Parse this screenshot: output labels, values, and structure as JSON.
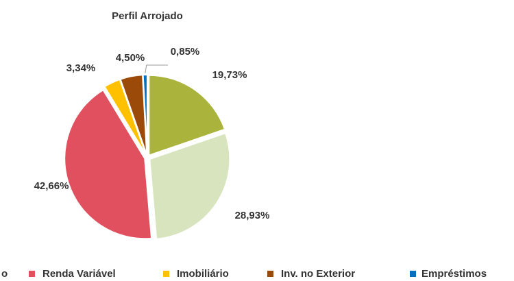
{
  "chart_data": {
    "type": "pie",
    "title": "Perfil Arrojado",
    "categories": [
      null,
      "o",
      "Renda Variável",
      "Imobiliário",
      "Inv. no Exterior",
      "Empréstimos"
    ],
    "values": [
      19.73,
      28.93,
      42.66,
      3.34,
      4.5,
      0.85
    ],
    "value_labels": [
      "19,73%",
      "28,93%",
      "42,66%",
      "3,34%",
      "4,50%",
      "0,85%"
    ],
    "colors": [
      "#aab33c",
      "#d7e4bd",
      "#e0505e",
      "#ffc000",
      "#9c4a0a",
      "#0070c0"
    ],
    "legend": "bottom"
  }
}
